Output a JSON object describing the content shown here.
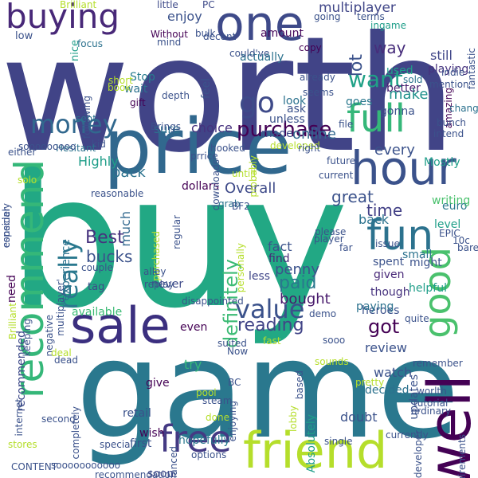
{
  "words": [
    {
      "id": "worth",
      "text": "worth",
      "color": "#414487"
    },
    {
      "id": "buy",
      "text": "buy",
      "color": "#22A884"
    },
    {
      "id": "game",
      "text": "game",
      "color": "#2A788E"
    },
    {
      "id": "price",
      "text": "price",
      "color": "#31688E"
    },
    {
      "id": "sale",
      "text": "sale",
      "color": "#3B2F7F"
    },
    {
      "id": "recommend",
      "text": "recommend",
      "color": "#35B779"
    },
    {
      "id": "friend",
      "text": "friend",
      "color": "#B5DE2B"
    },
    {
      "id": "hour",
      "text": "hour",
      "color": "#3B528B"
    },
    {
      "id": "well",
      "text": "well",
      "color": "#440154"
    },
    {
      "id": "good",
      "text": "good",
      "color": "#4AC16D"
    },
    {
      "id": "fun",
      "text": "fun",
      "color": "#2C728E"
    },
    {
      "id": "one",
      "text": "one",
      "color": "#3E4A89"
    },
    {
      "id": "buying",
      "text": "buying",
      "color": "#482878"
    },
    {
      "id": "money",
      "text": "money",
      "color": "#31688E"
    },
    {
      "id": "full",
      "text": "full",
      "color": "#35B779"
    },
    {
      "id": "go",
      "text": "go",
      "color": "#3E4A89"
    },
    {
      "id": "free",
      "text": "free",
      "color": "#443A83"
    },
    {
      "id": "really",
      "text": "really",
      "color": "#2A788E"
    },
    {
      "id": "value",
      "text": "value",
      "color": "#3B528B"
    },
    {
      "id": "definitely",
      "text": "definitely",
      "color": "#3CBB75"
    },
    {
      "id": "purchase",
      "text": "purchase",
      "color": "#440154"
    },
    {
      "id": "want",
      "text": "want",
      "color": "#1FA187"
    },
    {
      "id": "enjoy",
      "text": "enjoy",
      "color": "#3B528B"
    },
    {
      "id": "multiplayer",
      "text": "multiplayer",
      "color": "#404688"
    },
    {
      "id": "still",
      "text": "still",
      "color": "#404688"
    },
    {
      "id": "way",
      "text": "way",
      "color": "#472D7B"
    },
    {
      "id": "playing",
      "text": "playing",
      "color": "#46327E"
    },
    {
      "id": "lot",
      "text": "lot",
      "color": "#3B528B"
    },
    {
      "id": "Stop",
      "text": "Stop",
      "color": "#287C8E"
    },
    {
      "id": "actually",
      "text": "actually",
      "color": "#2C728E"
    },
    {
      "id": "amount",
      "text": "amount",
      "color": "#46085C"
    },
    {
      "id": "used",
      "text": "used",
      "color": "#1F9E89"
    },
    {
      "id": "make",
      "text": "make",
      "color": "#21918C"
    },
    {
      "id": "better",
      "text": "better",
      "color": "#481F70"
    },
    {
      "id": "ask",
      "text": "ask",
      "color": "#3B528B"
    },
    {
      "id": "look",
      "text": "look",
      "color": "#2C728E"
    },
    {
      "id": "goes",
      "text": "goes",
      "color": "#2A788E"
    },
    {
      "id": "gonna",
      "text": "gonna",
      "color": "#3B528B"
    },
    {
      "id": "online",
      "text": "online",
      "color": "#31688E"
    },
    {
      "id": "every",
      "text": "every",
      "color": "#3B528B"
    },
    {
      "id": "Mostly",
      "text": "Mostly",
      "color": "#1F9E89"
    },
    {
      "id": "sure",
      "text": "sure",
      "color": "#2C728E"
    },
    {
      "id": "choice",
      "text": "choice",
      "color": "#46327E"
    },
    {
      "id": "made",
      "text": "made",
      "color": "#3E4A89"
    },
    {
      "id": "Highly",
      "text": "Highly",
      "color": "#1F9E89"
    },
    {
      "id": "pack",
      "text": "pack",
      "color": "#2C728E"
    },
    {
      "id": "Overall",
      "text": "Overall",
      "color": "#3E4A89"
    },
    {
      "id": "dollars",
      "text": "dollars",
      "color": "#440154"
    },
    {
      "id": "great",
      "text": "great",
      "color": "#3B528B"
    },
    {
      "id": "time",
      "text": "time",
      "color": "#424086"
    },
    {
      "id": "Best",
      "text": "Best",
      "color": "#46327E"
    },
    {
      "id": "bucks",
      "text": "bucks",
      "color": "#3B528B"
    },
    {
      "id": "tag",
      "text": "tag",
      "color": "#3E4A89"
    },
    {
      "id": "much",
      "text": "much",
      "color": "#31688E"
    },
    {
      "id": "back",
      "text": "back",
      "color": "#2C728E"
    },
    {
      "id": "fact",
      "text": "fact",
      "color": "#3B528B"
    },
    {
      "id": "less",
      "text": "less",
      "color": "#404688"
    },
    {
      "id": "find",
      "text": "find",
      "color": "#482878"
    },
    {
      "id": "paid",
      "text": "paid",
      "color": "#2A788E"
    },
    {
      "id": "penny",
      "text": "penny",
      "color": "#3B528B"
    },
    {
      "id": "bought",
      "text": "bought",
      "color": "#481A6C"
    },
    {
      "id": "available",
      "text": "available",
      "color": "#3CBB75"
    },
    {
      "id": "never",
      "text": "never",
      "color": "#3E4A89"
    },
    {
      "id": "reading",
      "text": "reading",
      "color": "#414487"
    },
    {
      "id": "got",
      "text": "got",
      "color": "#440154"
    },
    {
      "id": "heroes",
      "text": "heroes",
      "color": "#3B528B"
    },
    {
      "id": "paying",
      "text": "paying",
      "color": "#2C728E"
    },
    {
      "id": "review",
      "text": "review",
      "color": "#3B528B"
    },
    {
      "id": "helpful",
      "text": "helpful",
      "color": "#1F9E89"
    },
    {
      "id": "though",
      "text": "though",
      "color": "#46327E"
    },
    {
      "id": "given",
      "text": "given",
      "color": "#482878"
    },
    {
      "id": "spent",
      "text": "spent",
      "color": "#3B528B"
    },
    {
      "id": "small",
      "text": "small",
      "color": "#2C728E"
    },
    {
      "id": "might",
      "text": "might",
      "color": "#3B528B"
    },
    {
      "id": "level",
      "text": "level",
      "color": "#1F9E89"
    },
    {
      "id": "euro",
      "text": "euro",
      "color": "#2A788E"
    },
    {
      "id": "writing",
      "text": "writing",
      "color": "#4AC16D"
    },
    {
      "id": "watch",
      "text": "watch",
      "color": "#3B528B"
    },
    {
      "id": "decided",
      "text": "decided",
      "color": "#2C728E"
    },
    {
      "id": "updates",
      "text": "updates",
      "color": "#3B528B"
    },
    {
      "id": "Absolutely",
      "text": "Absolutely",
      "color": "#1F9E89"
    },
    {
      "id": "doubt",
      "text": "doubt",
      "color": "#3B528B"
    },
    {
      "id": "wish",
      "text": "wish",
      "color": "#440154"
    },
    {
      "id": "first",
      "text": "first",
      "color": "#3B528B"
    },
    {
      "id": "soon",
      "text": "soon",
      "color": "#404688"
    },
    {
      "id": "hopefully",
      "text": "hopefully",
      "color": "#2A788E"
    },
    {
      "id": "options",
      "text": "options",
      "color": "#3B528B"
    },
    {
      "id": "retail",
      "text": "retail",
      "color": "#3B528B"
    },
    {
      "id": "give",
      "text": "give",
      "color": "#440154"
    },
    {
      "id": "try",
      "text": "try",
      "color": "#35B779"
    },
    {
      "id": "even",
      "text": "even",
      "color": "#440154"
    },
    {
      "id": "recommended",
      "text": "recommended",
      "color": "#3E4A89"
    },
    {
      "id": "experience",
      "text": "experience",
      "color": "#2C728E"
    },
    {
      "id": "need",
      "text": "need",
      "color": "#440154"
    },
    {
      "id": "low",
      "text": "low",
      "color": "#3B528B"
    },
    {
      "id": "nice",
      "text": "nice",
      "color": "#1F9E89"
    },
    {
      "id": "Without",
      "text": "Without",
      "color": "#440154"
    },
    {
      "id": "mind",
      "text": "mind",
      "color": "#3B528B"
    },
    {
      "id": "feel",
      "text": "feel",
      "color": "#3B528B"
    },
    {
      "id": "wait",
      "text": "wait",
      "color": "#2C728E"
    },
    {
      "id": "unless",
      "text": "unless",
      "color": "#3B528B"
    },
    {
      "id": "Brilliant",
      "text": "Brilliant",
      "color": "#B5DE2B"
    },
    {
      "id": "little",
      "text": "little",
      "color": "#3E4A89"
    },
    {
      "id": "PC",
      "text": "PC",
      "color": "#3E4A89"
    },
    {
      "id": "going",
      "text": "going",
      "color": "#3B528B"
    },
    {
      "id": "terms",
      "text": "terms",
      "color": "#3B528B"
    },
    {
      "id": "ingame",
      "text": "ingame",
      "color": "#1F9E89"
    },
    {
      "id": "focus",
      "text": "focus",
      "color": "#2C728E"
    },
    {
      "id": "bulk",
      "text": "bulk",
      "color": "#3B528B"
    },
    {
      "id": "decent",
      "text": "decent",
      "color": "#3B528B"
    },
    {
      "id": "copy",
      "text": "copy",
      "color": "#440154"
    },
    {
      "id": "could've",
      "text": "could've",
      "color": "#3B528B"
    },
    {
      "id": "short",
      "text": "short",
      "color": "#B5DE2B"
    },
    {
      "id": "book",
      "text": "book",
      "color": "#B5DE2B"
    },
    {
      "id": "gift",
      "text": "gift",
      "color": "#440154"
    },
    {
      "id": "depth",
      "text": "depth",
      "color": "#3B528B"
    },
    {
      "id": "following",
      "text": "following",
      "color": "#3B528B"
    },
    {
      "id": "sent",
      "text": "sent",
      "color": "#2C728E"
    },
    {
      "id": "Brings",
      "text": "Brings",
      "color": "#3B528B"
    },
    {
      "id": "kid",
      "text": "kid",
      "color": "#3B528B"
    },
    {
      "id": "Hesitant",
      "text": "Hesitant",
      "color": "#2C728E"
    },
    {
      "id": "either",
      "text": "either",
      "color": "#3B528B"
    },
    {
      "id": "sooooooooo",
      "text": "sooooooooo",
      "color": "#3B528B"
    },
    {
      "id": "solo",
      "text": "solo",
      "color": "#B5DE2B"
    },
    {
      "id": "reasonable",
      "text": "reasonable",
      "color": "#3B528B"
    },
    {
      "id": "especialy",
      "text": "especialy",
      "color": "#3B528B"
    },
    {
      "id": "consider",
      "text": "consider",
      "color": "#3B528B"
    },
    {
      "id": "Brilliant2",
      "text": "Brilliant",
      "color": "#B5DE2B"
    },
    {
      "id": "already",
      "text": "already",
      "color": "#3B528B"
    },
    {
      "id": "seems",
      "text": "seems",
      "color": "#3B528B"
    },
    {
      "id": "sold",
      "text": "sold",
      "color": "#2C728E"
    },
    {
      "id": "indie",
      "text": "indie",
      "color": "#3B528B"
    },
    {
      "id": "mention",
      "text": "mention",
      "color": "#3B528B"
    },
    {
      "id": "amazing",
      "text": "amazing",
      "color": "#440154"
    },
    {
      "id": "fantastic",
      "text": "fantastic",
      "color": "#3B528B"
    },
    {
      "id": "change",
      "text": "change",
      "color": "#2C728E"
    },
    {
      "id": "developed",
      "text": "developed",
      "color": "#B5DE2B"
    },
    {
      "id": "file",
      "text": "file",
      "color": "#3B528B"
    },
    {
      "id": "bunch",
      "text": "bunch",
      "color": "#3B528B"
    },
    {
      "id": "intend",
      "text": "intend",
      "color": "#3B528B"
    },
    {
      "id": "right",
      "text": "right",
      "color": "#3B528B"
    },
    {
      "id": "hooked",
      "text": "hooked",
      "color": "#3B528B"
    },
    {
      "id": "prrice",
      "text": "prrice",
      "color": "#3B528B"
    },
    {
      "id": "downloads",
      "text": "downloads",
      "color": "#3B528B"
    },
    {
      "id": "probably",
      "text": "probably",
      "color": "#B5DE2B"
    },
    {
      "id": "future",
      "text": "future",
      "color": "#3B528B"
    },
    {
      "id": "current",
      "text": "current",
      "color": "#3B528B"
    },
    {
      "id": "untill",
      "text": "untill",
      "color": "#B5DE2B"
    },
    {
      "id": "grab",
      "text": "grab",
      "color": "#2C728E"
    },
    {
      "id": "BF2",
      "text": "BF2",
      "color": "#3B528B"
    },
    {
      "id": "please",
      "text": "please",
      "color": "#3B528B"
    },
    {
      "id": "player",
      "text": "player",
      "color": "#3B528B"
    },
    {
      "id": "far",
      "text": "far",
      "color": "#3B528B"
    },
    {
      "id": "EPIC",
      "text": "EPIC",
      "color": "#3B528B"
    },
    {
      "id": "10c",
      "text": "10c",
      "color": "#3B528B"
    },
    {
      "id": "bare",
      "text": "bare",
      "color": "#3B528B"
    },
    {
      "id": "issue",
      "text": "issue",
      "color": "#3B528B"
    },
    {
      "id": "personally",
      "text": "personally",
      "color": "#B5DE2B"
    },
    {
      "id": "purchased",
      "text": "purchased",
      "color": "#B5DE2B"
    },
    {
      "id": "regular",
      "text": "regular",
      "color": "#3B528B"
    },
    {
      "id": "multiplayer2",
      "text": "multiplayer'",
      "color": "#3B528B"
    },
    {
      "id": "couple",
      "text": "couple",
      "color": "#3B528B"
    },
    {
      "id": "alley",
      "text": "alley",
      "color": "#3B528B"
    },
    {
      "id": "replay",
      "text": "replay",
      "color": "#3B528B"
    },
    {
      "id": "keeping",
      "text": "keeping",
      "color": "#3B528B"
    },
    {
      "id": "disappointed",
      "text": "disappointed",
      "color": "#3B528B"
    },
    {
      "id": "negative",
      "text": "negative",
      "color": "#3B528B"
    },
    {
      "id": "demo",
      "text": "demo",
      "color": "#3B528B"
    },
    {
      "id": "fast",
      "text": "fast",
      "color": "#B5DE2B"
    },
    {
      "id": "suited",
      "text": "suited",
      "color": "#3B528B"
    },
    {
      "id": "quite",
      "text": "quite",
      "color": "#3B528B"
    },
    {
      "id": "Now",
      "text": "Now",
      "color": "#3B528B"
    },
    {
      "id": "sooo",
      "text": "sooo",
      "color": "#3B528B"
    },
    {
      "id": "sounds",
      "text": "sounds",
      "color": "#B5DE2B"
    },
    {
      "id": "deal",
      "text": "deal",
      "color": "#B5DE2B"
    },
    {
      "id": "dead",
      "text": "dead",
      "color": "#3B528B"
    },
    {
      "id": "BC",
      "text": "BC",
      "color": "#3B528B"
    },
    {
      "id": "pretty",
      "text": "pretty",
      "color": "#B5DE2B"
    },
    {
      "id": "remember",
      "text": "remember",
      "color": "#3B528B"
    },
    {
      "id": "based",
      "text": "based",
      "color": "#3B528B"
    },
    {
      "id": "worlth",
      "text": "worlth",
      "color": "#3B528B"
    },
    {
      "id": "tutorial",
      "text": "tutorial",
      "color": "#3B528B"
    },
    {
      "id": "ordinary",
      "text": "ordinary",
      "color": "#3B528B"
    },
    {
      "id": "internet",
      "text": "internet",
      "color": "#3B528B"
    },
    {
      "id": "second",
      "text": "second",
      "color": "#3B528B"
    },
    {
      "id": "completely",
      "text": "completely",
      "color": "#3B528B"
    },
    {
      "id": "pool",
      "text": "pool",
      "color": "#B5DE2B"
    },
    {
      "id": "steam",
      "text": "steam",
      "color": "#3B528B"
    },
    {
      "id": "done",
      "text": "done",
      "color": "#B5DE2B"
    },
    {
      "id": "enjoying",
      "text": "enjoying",
      "color": "#3B528B"
    },
    {
      "id": "lobby",
      "text": "lobby",
      "color": "#B5DE2B"
    },
    {
      "id": "currently",
      "text": "currently",
      "color": "#3B528B"
    },
    {
      "id": "developer",
      "text": "developer",
      "color": "#3B528B"
    },
    {
      "id": "requirements",
      "text": "requirements",
      "color": "#3B528B"
    },
    {
      "id": "stores",
      "text": "stores",
      "color": "#B5DE2B"
    },
    {
      "id": "CONTENT",
      "text": "CONTENT",
      "color": "#3B528B"
    },
    {
      "id": "recommendation",
      "text": "recommendation",
      "color": "#3B528B"
    },
    {
      "id": "special",
      "text": "special",
      "color": "#3B528B"
    },
    {
      "id": "balanced",
      "text": "balanced",
      "color": "#3B528B"
    },
    {
      "id": "single",
      "text": "single",
      "color": "#3B528B"
    },
    {
      "id": "sooooooooooo",
      "text": "sooooooooooo",
      "color": "#3B528B"
    }
  ]
}
